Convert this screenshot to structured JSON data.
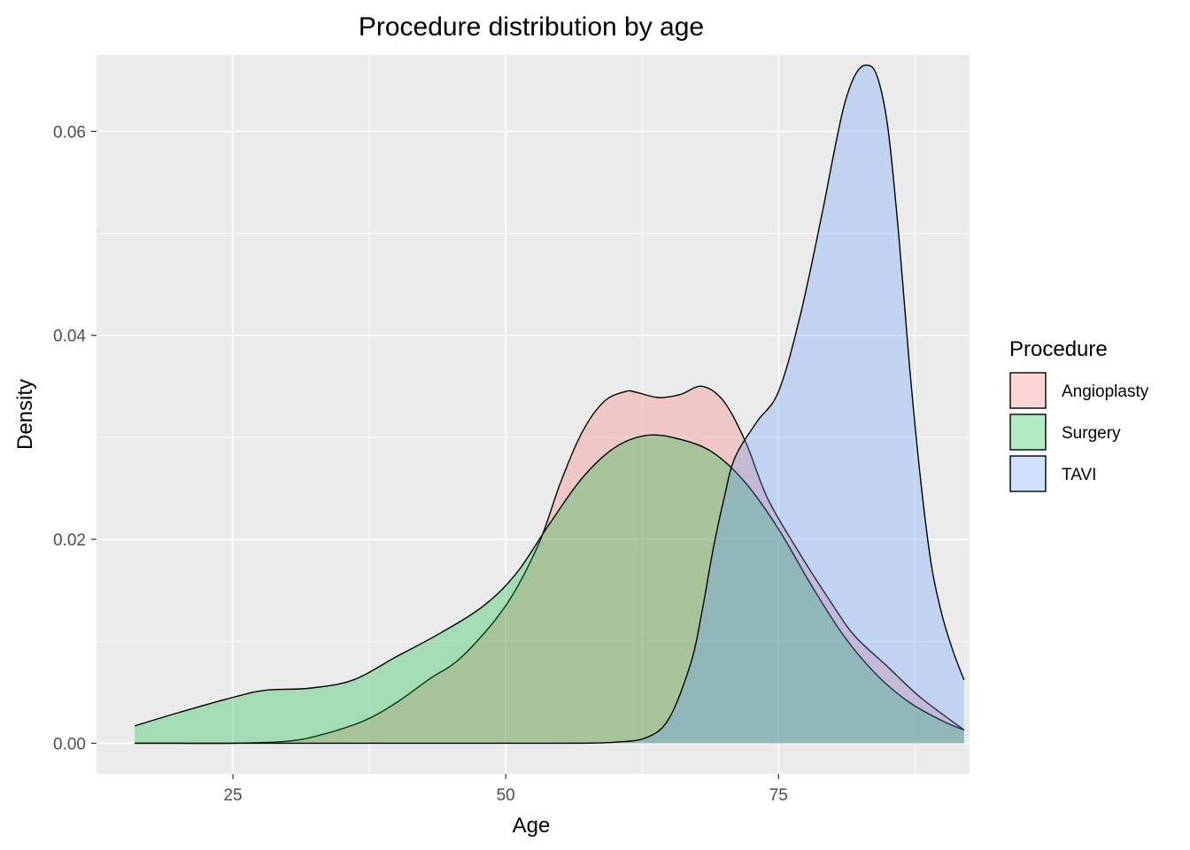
{
  "chart_data": {
    "type": "area",
    "title": "Procedure distribution by age",
    "xlabel": "Age",
    "ylabel": "Density",
    "xlim": [
      12.5,
      92.5
    ],
    "ylim": [
      -0.003,
      0.0675
    ],
    "x_ticks": [
      25,
      50,
      75
    ],
    "x_tick_labels": [
      "25",
      "50",
      "75"
    ],
    "y_ticks": [
      0.0,
      0.02,
      0.04,
      0.06
    ],
    "y_tick_labels": [
      "0.00",
      "0.02",
      "0.04",
      "0.06"
    ],
    "grid": true,
    "legend": {
      "title": "Procedure",
      "position": "right"
    },
    "series": [
      {
        "name": "Angioplasty",
        "color": "#F8766D",
        "x": [
          16,
          20,
          25,
          30,
          33,
          37,
          40,
          43,
          46,
          50,
          53,
          55,
          57,
          59,
          61,
          62,
          64,
          66,
          68,
          70,
          72,
          74,
          77,
          80,
          82,
          85,
          88,
          92
        ],
        "y": [
          0.0,
          0.0,
          0.0,
          0.0002,
          0.0008,
          0.0022,
          0.004,
          0.0063,
          0.0085,
          0.0135,
          0.0195,
          0.0255,
          0.0305,
          0.0335,
          0.0345,
          0.0344,
          0.0339,
          0.0342,
          0.035,
          0.0335,
          0.0295,
          0.024,
          0.0185,
          0.0135,
          0.0105,
          0.0075,
          0.0045,
          0.0013
        ]
      },
      {
        "name": "Surgery",
        "color": "#00BA38",
        "x": [
          16,
          20,
          25,
          28,
          32,
          36,
          40,
          44,
          48,
          51,
          54,
          57,
          60,
          63,
          66,
          69,
          72,
          75,
          78,
          81,
          84,
          87,
          90,
          92
        ],
        "y": [
          0.0017,
          0.003,
          0.0045,
          0.0052,
          0.0054,
          0.0062,
          0.0085,
          0.0108,
          0.0135,
          0.0167,
          0.0215,
          0.026,
          0.029,
          0.0302,
          0.0298,
          0.0285,
          0.0255,
          0.021,
          0.0155,
          0.0105,
          0.0067,
          0.004,
          0.0022,
          0.0013
        ]
      },
      {
        "name": "TAVI",
        "color": "#619CFF",
        "x": [
          16,
          40,
          55,
          60,
          63,
          65,
          67,
          68,
          69,
          70,
          71,
          73,
          75,
          77,
          79,
          80,
          81,
          82,
          83,
          84,
          85,
          86,
          87,
          88,
          89,
          90,
          91,
          92
        ],
        "y": [
          0.0,
          0.0,
          0.0,
          0.0001,
          0.0006,
          0.0025,
          0.008,
          0.013,
          0.019,
          0.024,
          0.028,
          0.0315,
          0.0345,
          0.042,
          0.052,
          0.0575,
          0.0625,
          0.0655,
          0.0665,
          0.0655,
          0.0605,
          0.05,
          0.037,
          0.026,
          0.0175,
          0.0125,
          0.009,
          0.0062
        ]
      }
    ]
  }
}
